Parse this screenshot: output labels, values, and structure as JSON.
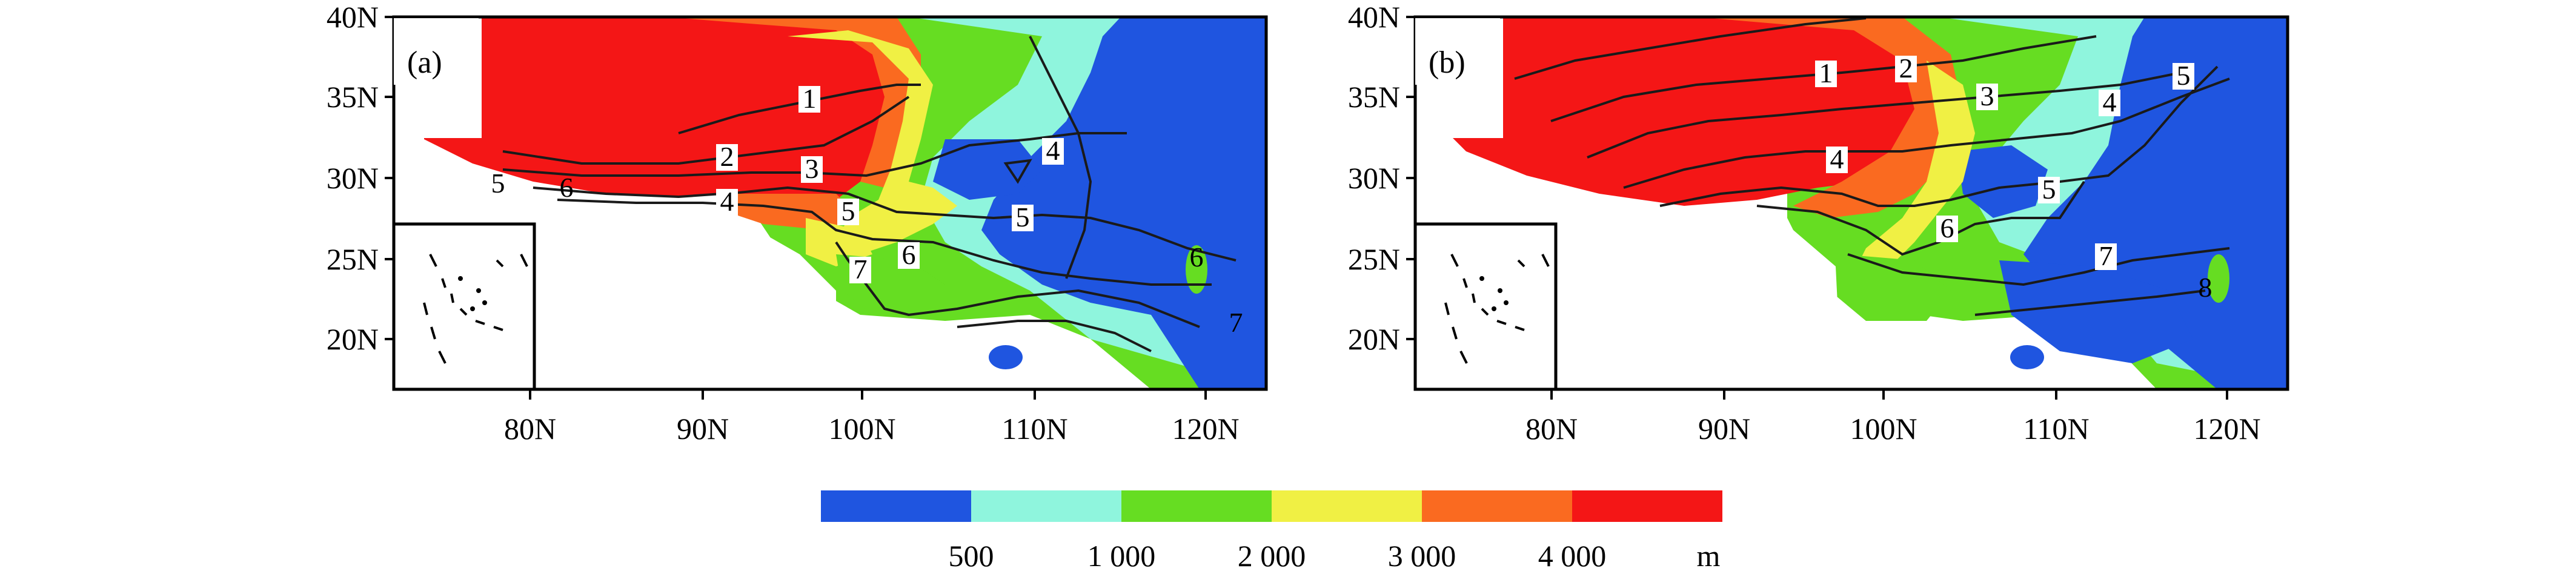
{
  "colors": {
    "below_500": "#1f55e0",
    "500_1000": "#8ff5dd",
    "1000_2000": "#66dd22",
    "2000_3000": "#f0f044",
    "3000_4000": "#fa6a20",
    "above_4000": "#f41616",
    "contour": "#1a1a1a",
    "frame": "#000000",
    "background_land": "#ffffff"
  },
  "panels": [
    {
      "label": "(a)",
      "y_ticks": [
        "40N",
        "35N",
        "30N",
        "25N",
        "20N"
      ],
      "x_ticks": [
        "80N",
        "90N",
        "100N",
        "110N",
        "120N"
      ],
      "contour_labels": [
        "1",
        "2",
        "3",
        "4",
        "4",
        "5",
        "5",
        "6",
        "6",
        "7",
        "6",
        "7",
        "5"
      ]
    },
    {
      "label": "(b)",
      "y_ticks": [
        "40N",
        "35N",
        "30N",
        "25N",
        "20N"
      ],
      "x_ticks": [
        "80N",
        "90N",
        "100N",
        "110N",
        "120N"
      ],
      "contour_labels": [
        "1",
        "2",
        "3",
        "4",
        "5",
        "4",
        "5",
        "6",
        "7",
        "8"
      ]
    }
  ],
  "legend": {
    "tick_labels": [
      "500",
      "1 000",
      "2 000",
      "3 000",
      "4 000"
    ],
    "unit": "m"
  }
}
